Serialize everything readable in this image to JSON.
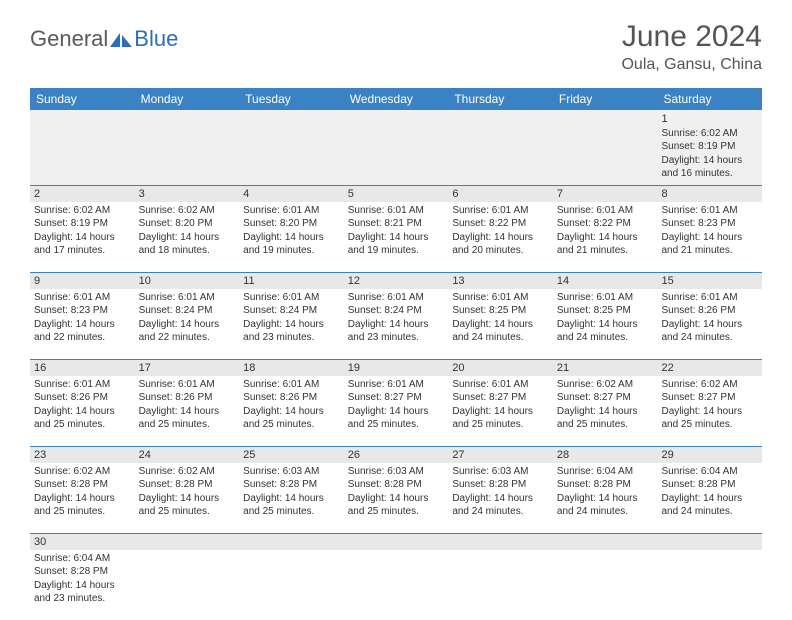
{
  "brand": {
    "prefix": "General",
    "suffix": "Blue",
    "text_color": "#5a5a5a",
    "accent_color": "#2a6fb5"
  },
  "title": "June 2024",
  "location": "Oula, Gansu, China",
  "header_color": "#3b82c4",
  "weekdays": [
    "Sunday",
    "Monday",
    "Tuesday",
    "Wednesday",
    "Thursday",
    "Friday",
    "Saturday"
  ],
  "days": {
    "1": {
      "sunrise": "6:02 AM",
      "sunset": "8:19 PM",
      "daylight": "14 hours and 16 minutes."
    },
    "2": {
      "sunrise": "6:02 AM",
      "sunset": "8:19 PM",
      "daylight": "14 hours and 17 minutes."
    },
    "3": {
      "sunrise": "6:02 AM",
      "sunset": "8:20 PM",
      "daylight": "14 hours and 18 minutes."
    },
    "4": {
      "sunrise": "6:01 AM",
      "sunset": "8:20 PM",
      "daylight": "14 hours and 19 minutes."
    },
    "5": {
      "sunrise": "6:01 AM",
      "sunset": "8:21 PM",
      "daylight": "14 hours and 19 minutes."
    },
    "6": {
      "sunrise": "6:01 AM",
      "sunset": "8:22 PM",
      "daylight": "14 hours and 20 minutes."
    },
    "7": {
      "sunrise": "6:01 AM",
      "sunset": "8:22 PM",
      "daylight": "14 hours and 21 minutes."
    },
    "8": {
      "sunrise": "6:01 AM",
      "sunset": "8:23 PM",
      "daylight": "14 hours and 21 minutes."
    },
    "9": {
      "sunrise": "6:01 AM",
      "sunset": "8:23 PM",
      "daylight": "14 hours and 22 minutes."
    },
    "10": {
      "sunrise": "6:01 AM",
      "sunset": "8:24 PM",
      "daylight": "14 hours and 22 minutes."
    },
    "11": {
      "sunrise": "6:01 AM",
      "sunset": "8:24 PM",
      "daylight": "14 hours and 23 minutes."
    },
    "12": {
      "sunrise": "6:01 AM",
      "sunset": "8:24 PM",
      "daylight": "14 hours and 23 minutes."
    },
    "13": {
      "sunrise": "6:01 AM",
      "sunset": "8:25 PM",
      "daylight": "14 hours and 24 minutes."
    },
    "14": {
      "sunrise": "6:01 AM",
      "sunset": "8:25 PM",
      "daylight": "14 hours and 24 minutes."
    },
    "15": {
      "sunrise": "6:01 AM",
      "sunset": "8:26 PM",
      "daylight": "14 hours and 24 minutes."
    },
    "16": {
      "sunrise": "6:01 AM",
      "sunset": "8:26 PM",
      "daylight": "14 hours and 25 minutes."
    },
    "17": {
      "sunrise": "6:01 AM",
      "sunset": "8:26 PM",
      "daylight": "14 hours and 25 minutes."
    },
    "18": {
      "sunrise": "6:01 AM",
      "sunset": "8:26 PM",
      "daylight": "14 hours and 25 minutes."
    },
    "19": {
      "sunrise": "6:01 AM",
      "sunset": "8:27 PM",
      "daylight": "14 hours and 25 minutes."
    },
    "20": {
      "sunrise": "6:01 AM",
      "sunset": "8:27 PM",
      "daylight": "14 hours and 25 minutes."
    },
    "21": {
      "sunrise": "6:02 AM",
      "sunset": "8:27 PM",
      "daylight": "14 hours and 25 minutes."
    },
    "22": {
      "sunrise": "6:02 AM",
      "sunset": "8:27 PM",
      "daylight": "14 hours and 25 minutes."
    },
    "23": {
      "sunrise": "6:02 AM",
      "sunset": "8:28 PM",
      "daylight": "14 hours and 25 minutes."
    },
    "24": {
      "sunrise": "6:02 AM",
      "sunset": "8:28 PM",
      "daylight": "14 hours and 25 minutes."
    },
    "25": {
      "sunrise": "6:03 AM",
      "sunset": "8:28 PM",
      "daylight": "14 hours and 25 minutes."
    },
    "26": {
      "sunrise": "6:03 AM",
      "sunset": "8:28 PM",
      "daylight": "14 hours and 25 minutes."
    },
    "27": {
      "sunrise": "6:03 AM",
      "sunset": "8:28 PM",
      "daylight": "14 hours and 24 minutes."
    },
    "28": {
      "sunrise": "6:04 AM",
      "sunset": "8:28 PM",
      "daylight": "14 hours and 24 minutes."
    },
    "29": {
      "sunrise": "6:04 AM",
      "sunset": "8:28 PM",
      "daylight": "14 hours and 24 minutes."
    },
    "30": {
      "sunrise": "6:04 AM",
      "sunset": "8:28 PM",
      "daylight": "14 hours and 23 minutes."
    }
  },
  "labels": {
    "sunrise_prefix": "Sunrise: ",
    "sunset_prefix": "Sunset: ",
    "daylight_prefix": "Daylight: "
  },
  "layout": {
    "first_day_column": 6,
    "total_days": 30,
    "grid_line_color": "#3b82c4",
    "daynum_bg": "#e8e8e8",
    "firstweek_bg": "#f0f0f0"
  }
}
